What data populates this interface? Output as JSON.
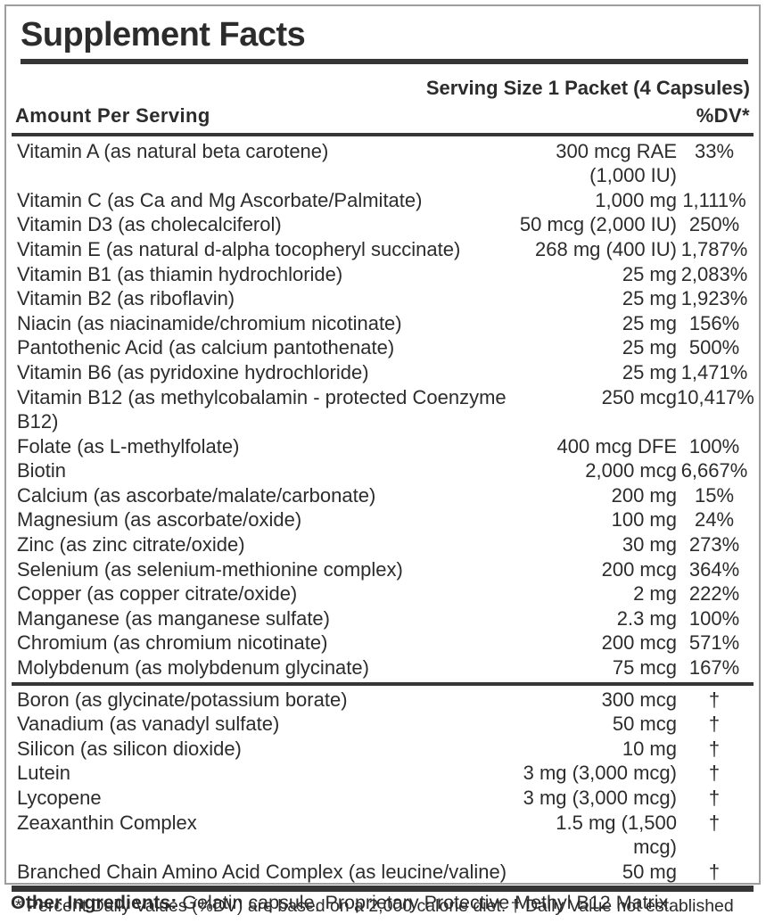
{
  "colors": {
    "text": "#2c2c2c",
    "rule": "#363636",
    "box_border": "#9e9e9e",
    "background": "#ffffff"
  },
  "label": {
    "title": "Supplement Facts",
    "serving_size": "Serving Size 1 Packet (4 Capsules)",
    "header": {
      "amount": "Amount Per Serving",
      "dv": "%DV*"
    },
    "sections": [
      {
        "name": "vitamins-and-minerals",
        "rows": [
          {
            "name": "Vitamin A (as natural beta carotene)",
            "amount": "300 mcg RAE (1,000 IU)",
            "dv": "33%"
          },
          {
            "name": "Vitamin C (as Ca and Mg Ascorbate/Palmitate)",
            "amount": "1,000 mg",
            "dv": "1,111%"
          },
          {
            "name": "Vitamin D3 (as cholecalciferol)",
            "amount": "50 mcg (2,000 IU)",
            "dv": "250%"
          },
          {
            "name": "Vitamin E (as natural d-alpha tocopheryl succinate)",
            "amount": "268 mg (400 IU)",
            "dv": "1,787%"
          },
          {
            "name": "Vitamin B1 (as thiamin hydrochloride)",
            "amount": "25 mg",
            "dv": "2,083%"
          },
          {
            "name": "Vitamin B2 (as riboflavin)",
            "amount": "25 mg",
            "dv": "1,923%"
          },
          {
            "name": "Niacin (as niacinamide/chromium nicotinate)",
            "amount": "25 mg",
            "dv": "156%"
          },
          {
            "name": "Pantothenic Acid (as calcium pantothenate)",
            "amount": "25 mg",
            "dv": "500%"
          },
          {
            "name": "Vitamin B6 (as pyridoxine hydrochloride)",
            "amount": "25 mg",
            "dv": "1,471%"
          },
          {
            "name": "Vitamin B12 (as methylcobalamin - protected Coenzyme B12)",
            "amount": "250 mcg",
            "dv": "10,417%"
          },
          {
            "name": "Folate (as L-methylfolate)",
            "amount": "400 mcg DFE",
            "dv": "100%"
          },
          {
            "name": "Biotin",
            "amount": "2,000 mcg",
            "dv": "6,667%"
          },
          {
            "name": "Calcium (as ascorbate/malate/carbonate)",
            "amount": "200 mg",
            "dv": "15%"
          },
          {
            "name": "Magnesium (as ascorbate/oxide)",
            "amount": "100 mg",
            "dv": "24%"
          },
          {
            "name": "Zinc (as zinc citrate/oxide)",
            "amount": "30 mg",
            "dv": "273%"
          },
          {
            "name": "Selenium (as selenium-methionine complex)",
            "amount": "200 mcg",
            "dv": "364%"
          },
          {
            "name": "Copper (as copper citrate/oxide)",
            "amount": "2 mg",
            "dv": "222%"
          },
          {
            "name": "Manganese (as manganese sulfate)",
            "amount": "2.3 mg",
            "dv": "100%"
          },
          {
            "name": "Chromium (as chromium nicotinate)",
            "amount": "200 mcg",
            "dv": "571%"
          },
          {
            "name": "Molybdenum (as molybdenum glycinate)",
            "amount": "75 mcg",
            "dv": "167%"
          }
        ]
      },
      {
        "name": "other-nutrients",
        "rows": [
          {
            "name": "Boron (as glycinate/potassium borate)",
            "amount": "300 mcg",
            "dv": "†"
          },
          {
            "name": "Vanadium (as vanadyl sulfate)",
            "amount": "50 mcg",
            "dv": "†"
          },
          {
            "name": "Silicon (as silicon dioxide)",
            "amount": "10 mg",
            "dv": "†"
          },
          {
            "name": "Lutein",
            "amount": "3 mg (3,000 mcg)",
            "dv": "†"
          },
          {
            "name": "Lycopene",
            "amount": "3 mg (3,000 mcg)",
            "dv": "†"
          },
          {
            "name": "Zeaxanthin Complex",
            "amount": "1.5 mg (1,500 mcg)",
            "dv": "†"
          },
          {
            "name": "Branched Chain Amino Acid Complex (as leucine/valine)",
            "amount": "50 mg",
            "dv": "†"
          }
        ]
      }
    ],
    "footnote": "* Percent Daily Values (%DV) are based on a 2,000 calorie diet. † Daily Value not established"
  },
  "other_ingredients": {
    "label": "Other Ingredients:",
    "text": " Gelatin capsule, Proprietary Protective Methyl B12 Matrix."
  }
}
